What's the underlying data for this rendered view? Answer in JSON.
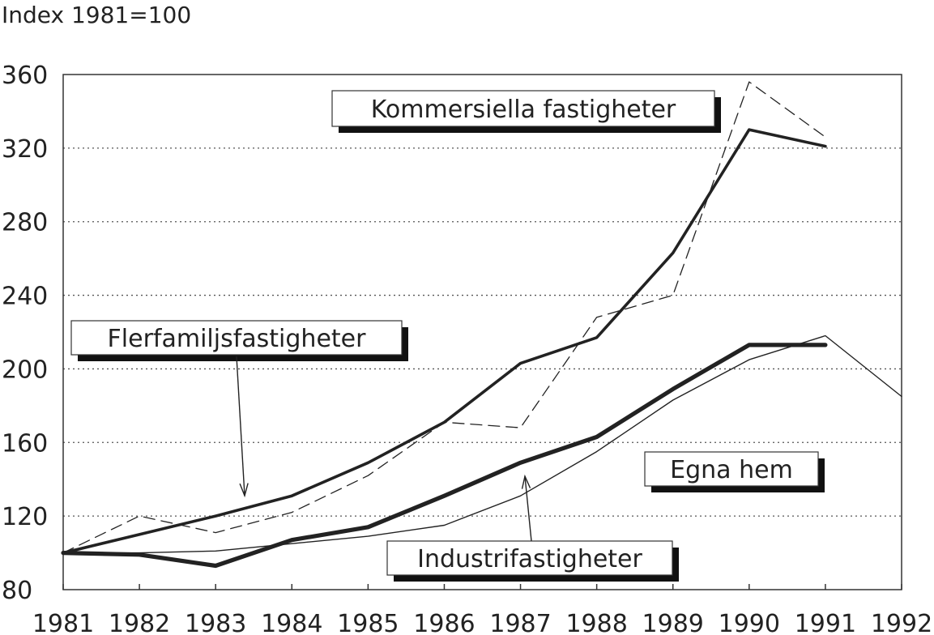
{
  "chart_data": {
    "type": "line",
    "ylabel": "Index 1981=100",
    "x": [
      1981,
      1982,
      1983,
      1984,
      1985,
      1986,
      1987,
      1988,
      1989,
      1990,
      1991,
      1992
    ],
    "xlim": [
      1981,
      1992
    ],
    "ylim": [
      80,
      360
    ],
    "yticks": [
      80,
      120,
      160,
      200,
      240,
      280,
      320,
      360
    ],
    "grid": "horizontal dotted",
    "series": [
      {
        "name": "Kommersiella fastigheter",
        "style": "thick solid",
        "x": [
          1981,
          1982,
          1983,
          1984,
          1985,
          1986,
          1987,
          1988,
          1989,
          1990,
          1991
        ],
        "values": [
          100,
          110,
          120,
          131,
          149,
          171,
          203,
          217,
          263,
          330,
          321
        ]
      },
      {
        "name": "Flerfamiljsfastigheter",
        "style": "dashed",
        "x": [
          1981,
          1982,
          1983,
          1984,
          1985,
          1986,
          1987,
          1988,
          1989,
          1990,
          1991
        ],
        "values": [
          100,
          120,
          111,
          122,
          142,
          171,
          168,
          228,
          240,
          356,
          326
        ]
      },
      {
        "name": "Egna hem",
        "style": "double thick solid",
        "x": [
          1981,
          1982,
          1983,
          1984,
          1985,
          1986,
          1987,
          1988,
          1989,
          1990,
          1991
        ],
        "values": [
          100,
          99,
          93,
          107,
          114,
          131,
          149,
          163,
          189,
          213,
          213
        ]
      },
      {
        "name": "Industrifastigheter",
        "style": "thin solid",
        "x": [
          1981,
          1982,
          1983,
          1984,
          1985,
          1986,
          1987,
          1988,
          1989,
          1990,
          1991,
          1992
        ],
        "values": [
          100,
          100,
          101,
          105,
          109,
          115,
          131,
          155,
          183,
          205,
          218,
          185
        ]
      }
    ]
  },
  "colors": {
    "ink": "#222222",
    "grid": "#555555",
    "box_shadow": "#111111"
  }
}
